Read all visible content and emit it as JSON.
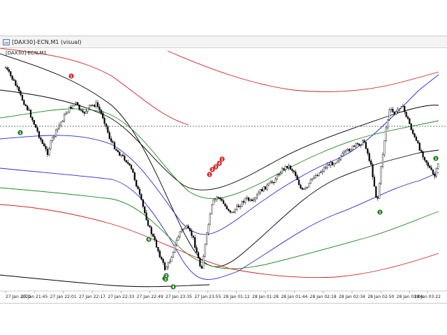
{
  "window": {
    "title": "[DAX30]-ECN,M1 (visual)",
    "chart_label": "[DAX30]-ECN,M1"
  },
  "chart_data": {
    "type": "line",
    "instrument": "[DAX30]-ECN",
    "timeframe": "M1",
    "x_tick_labels": [
      "27 Jan 2020",
      "27 Jan 21:45",
      "27 Jan 22:01",
      "27 Jan 22:17",
      "27 Jan 22:33",
      "27 Jan 22:49",
      "27 Jan 23:35",
      "27 Jan 23:55",
      "28 Jan 01:12",
      "28 Jan 01:28",
      "28 Jan 01:44",
      "28 Jan 02:18",
      "28 Jan 02:34",
      "28 Jan 02:50",
      "28 Jan 03:06",
      "28 Jan 03:22"
    ],
    "series": [
      {
        "name": "",
        "color": "#000000"
      },
      {
        "name": "",
        "color": "#2a2ad0"
      },
      {
        "name": "",
        "color": "#1f8a1f"
      },
      {
        "name": "",
        "color": "#d02020"
      }
    ],
    "signals": [
      {
        "type": "sell",
        "label": "1",
        "color": "#d42020"
      },
      {
        "type": "sell",
        "label": "1",
        "color": "#d42020"
      },
      {
        "type": "sell",
        "label": "2",
        "color": "#d42020"
      },
      {
        "type": "sell",
        "label": "3",
        "color": "#d42020"
      },
      {
        "type": "sell",
        "label": "4",
        "color": "#d42020"
      },
      {
        "type": "sell",
        "label": "1",
        "color": "#d42020"
      },
      {
        "type": "buy",
        "label": "1",
        "color": "#1e7a1e"
      },
      {
        "type": "buy",
        "label": "4",
        "color": "#1e7a1e"
      },
      {
        "type": "buy",
        "label": "1",
        "color": "#1e7a1e"
      },
      {
        "type": "buy",
        "label": "2",
        "color": "#1e7a1e"
      },
      {
        "type": "buy",
        "label": "3",
        "color": "#1e7a1e"
      },
      {
        "type": "buy",
        "label": "4",
        "color": "#1e7a1e"
      },
      {
        "type": "buy",
        "label": "1",
        "color": "#1e7a1e"
      },
      {
        "type": "buy",
        "label": "1",
        "color": "#1e7a1e"
      }
    ],
    "grid": false,
    "current_price_line": "dotted"
  }
}
